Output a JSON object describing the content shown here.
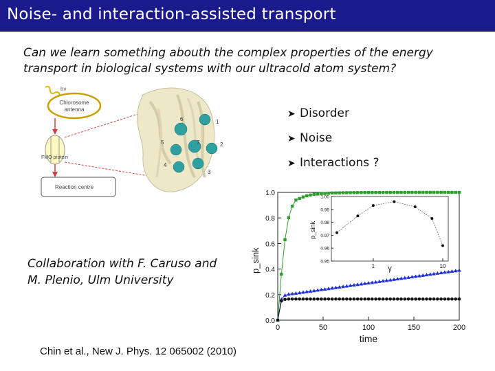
{
  "header": {
    "title": "Noise- and interaction-assisted transport"
  },
  "question": {
    "line1": "Can we learn something abouth the complex properties of the energy",
    "line2": "transport in biological systems with our ultracold atom system?"
  },
  "bullets": [
    {
      "text": "Disorder"
    },
    {
      "text": "Noise"
    },
    {
      "text": "Interactions ?"
    }
  ],
  "collaboration": {
    "line1": "Collaboration with F. Caruso and",
    "line2": "M. Plenio, Ulm University"
  },
  "citation": "Chin et al., New J. Phys. 12 065002 (2010)",
  "diagram": {
    "light_label": "hν",
    "chlorosome_label_1": "Chlorosome",
    "chlorosome_label_2": "antenna",
    "fmo_label": "FMO protein",
    "reaction_label": "Reaction centre",
    "site_numbers": [
      "1",
      "2",
      "3",
      "4",
      "5",
      "6",
      "7"
    ]
  },
  "chart_data": [
    {
      "type": "line",
      "xlabel": "time",
      "ylabel": "p_sink",
      "xlim": [
        0,
        200
      ],
      "ylim": [
        0,
        1.0
      ],
      "x_ticks": [
        "0",
        "50",
        "100",
        "150",
        "200"
      ],
      "y_ticks": [
        "0.0",
        "0.2",
        "0.4",
        "0.6",
        "0.8",
        "1.0"
      ],
      "colors": [
        "#2e9e2e",
        "#1f2fd8",
        "#111111"
      ],
      "series": [
        {
          "x": [
            0,
            5,
            10,
            15,
            20,
            30,
            40,
            50,
            60,
            80,
            100,
            150,
            200
          ],
          "y": [
            0,
            0.45,
            0.75,
            0.88,
            0.94,
            0.97,
            0.985,
            0.99,
            0.995,
            0.998,
            0.999,
            1.0,
            1.0
          ]
        },
        {
          "x": [
            0,
            3,
            6,
            10,
            20,
            40,
            60,
            80,
            100,
            120,
            140,
            160,
            180,
            200
          ],
          "y": [
            0,
            0.15,
            0.19,
            0.2,
            0.21,
            0.23,
            0.25,
            0.27,
            0.29,
            0.31,
            0.33,
            0.35,
            0.37,
            0.39
          ]
        },
        {
          "x": [
            0,
            2,
            4,
            6,
            10,
            20,
            50,
            100,
            150,
            200
          ],
          "y": [
            0,
            0.1,
            0.15,
            0.16,
            0.165,
            0.165,
            0.165,
            0.165,
            0.165,
            0.165
          ]
        }
      ]
    },
    {
      "type": "line",
      "xlabel": "γ",
      "ylabel": "p_sink",
      "xscale": "log",
      "ylim": [
        0.95,
        1.0
      ],
      "x_ticks": [
        "1",
        "10"
      ],
      "y_ticks": [
        "0.95",
        "0.96",
        "0.97",
        "0.98",
        "0.99",
        "1.00"
      ],
      "colors": [
        "#111111"
      ],
      "series": [
        {
          "x": [
            0.3,
            0.6,
            1,
            2,
            4,
            7,
            10
          ],
          "y": [
            0.972,
            0.985,
            0.993,
            0.996,
            0.992,
            0.983,
            0.962
          ]
        }
      ]
    }
  ]
}
